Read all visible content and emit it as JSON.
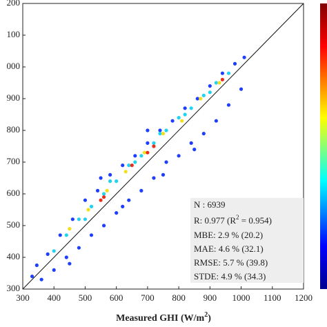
{
  "chart_data": {
    "type": "scatter",
    "xlabel": {
      "text": "Measured GHI (W/m",
      "sup": "2",
      "rest": ")"
    },
    "xlim": [
      300,
      1200
    ],
    "xticks": [
      300,
      400,
      500,
      600,
      700,
      800,
      900,
      1000,
      1100,
      1200
    ],
    "ylim": [
      300,
      1200
    ],
    "yticks": [
      300,
      400,
      500,
      600,
      700,
      800,
      900,
      {
        "value": 1000,
        "label": "000"
      },
      {
        "value": 1100,
        "label": "100"
      },
      {
        "value": 1200,
        "label": "200"
      }
    ],
    "series": [
      {
        "color": "#1f3fff",
        "x": [
          330,
          345,
          360,
          380,
          400,
          420,
          440,
          460,
          480,
          500,
          520,
          540,
          560,
          580,
          600,
          620,
          640,
          660,
          680,
          700,
          720,
          740,
          760,
          780,
          800,
          820,
          840,
          860,
          880,
          900,
          920,
          940,
          960,
          980,
          1000,
          1010,
          620,
          750,
          850,
          450,
          700,
          550
        ],
        "y": [
          340,
          375,
          330,
          410,
          360,
          470,
          400,
          520,
          430,
          580,
          470,
          610,
          500,
          660,
          540,
          690,
          580,
          720,
          610,
          760,
          650,
          800,
          700,
          830,
          720,
          870,
          760,
          900,
          790,
          940,
          830,
          980,
          880,
          1010,
          930,
          1030,
          560,
          660,
          740,
          380,
          800,
          650
        ]
      },
      {
        "color": "#22d3f0",
        "x": [
          400,
          440,
          480,
          520,
          560,
          600,
          640,
          680,
          720,
          760,
          800,
          840,
          880,
          920,
          960,
          500,
          580,
          660,
          740,
          820,
          900
        ],
        "y": [
          420,
          470,
          520,
          560,
          600,
          640,
          690,
          720,
          760,
          800,
          840,
          870,
          910,
          950,
          980,
          520,
          640,
          700,
          790,
          850,
          920
        ]
      },
      {
        "color": "#f2e01c",
        "x": [
          450,
          510,
          570,
          630,
          690,
          750,
          810,
          870,
          930
        ],
        "y": [
          490,
          550,
          610,
          670,
          730,
          790,
          830,
          900,
          950
        ]
      },
      {
        "color": "#e8301c",
        "x": [
          550,
          560,
          700,
          720,
          940,
          650
        ],
        "y": [
          580,
          590,
          730,
          750,
          960,
          690
        ]
      }
    ],
    "stats": {
      "n": "N : 6939",
      "r": {
        "text": "R: 0.977  (R",
        "sup": "2",
        "rest": " = 0.954)"
      },
      "lines": [
        "MBE:  2.9 %  (20.2)",
        "MAE:  4.6 %  (32.1)",
        "RMSE:  5.7 %  (39.8)",
        "STDE:  4.9 %  (34.3)"
      ]
    }
  }
}
